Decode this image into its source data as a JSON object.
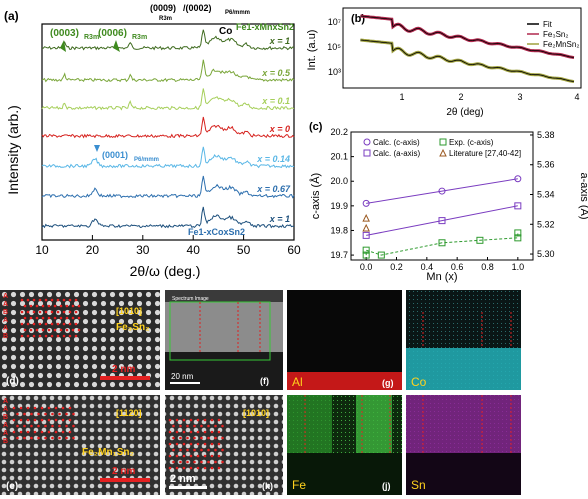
{
  "panel_a": {
    "label": "(a)",
    "xlabel": "2θ/ω (deg.)",
    "ylabel": "Intensity (arb.)",
    "xticks": [
      "10",
      "20",
      "30",
      "40",
      "50",
      "60"
    ],
    "series_labels": [
      "x = 1",
      "x = 0.5",
      "x = 0.1",
      "x = 0",
      "x = 0.14",
      "x = 0.67",
      "x = 1"
    ],
    "annot_0003": "(0003)",
    "annot_0003_sub": "R3m",
    "annot_0006": "(0006)",
    "annot_0006_sub": "R3m",
    "annot_0009": "(0009)",
    "annot_0009_sub": "R3m",
    "annot_0002": "/(0002)",
    "annot_0002_sub": "P6/mmm",
    "annot_co": "Co",
    "annot_top_formula": "Fe1-xMnxSn2",
    "annot_0001": "(0001)",
    "annot_0001_sub": "P6/mmm",
    "annot_bottom_formula": "Fe1-xCoxSn2",
    "colors": [
      "#3f6b1f",
      "#7aa63a",
      "#a6cf5a",
      "#d6231f",
      "#5ab7e6",
      "#2d6fae",
      "#1c4f7c"
    ]
  },
  "panel_b": {
    "label": "(b)",
    "ylabel": "Int. (a.u)",
    "xlabel": "2θ (deg)",
    "xticks": [
      "1",
      "2",
      "3",
      "4"
    ],
    "yticks": [
      "10⁷",
      "10⁵",
      "10³"
    ],
    "legend": [
      "Fit",
      "Fe₃Sn₂",
      "Fe₂MnSn₂"
    ]
  },
  "panel_c": {
    "label": "(c)",
    "ylabel_left": "c-axis (Å)",
    "ylabel_right": "a-axis (Å)",
    "xlabel": "Mn (x)",
    "left_ticks": [
      "20.2",
      "20.1",
      "20.0",
      "19.9",
      "19.8",
      "19.7"
    ],
    "right_ticks": [
      "5.38",
      "5.36",
      "5.34",
      "5.32",
      "5.30"
    ],
    "xticks": [
      "0.0",
      "0.2",
      "0.4",
      "0.6",
      "0.8",
      "1.0"
    ],
    "legend": [
      "Calc. (c-axis)",
      "Calc. (a-axis)",
      "Exp. (c-axis)",
      "Literature [27,40-42]"
    ]
  },
  "chart_data": {
    "type": "scatter",
    "title": "",
    "xlabel": "Mn (x)",
    "ylabel": "c-axis (Å)",
    "xlim": [
      -0.1,
      1.1
    ],
    "ylim": [
      19.68,
      20.2
    ],
    "series": [
      {
        "name": "Calc. (c-axis)",
        "x": [
          0,
          0.5,
          1.0
        ],
        "y": [
          19.91,
          19.96,
          20.01
        ]
      },
      {
        "name": "Calc. (a-axis)",
        "x": [
          0,
          0.5,
          1.0
        ],
        "y": [
          19.78,
          19.84,
          19.9
        ]
      },
      {
        "name": "Exp. (c-axis)",
        "x": [
          0,
          0,
          0.1,
          0.5,
          0.75,
          1.0,
          1.0
        ],
        "y": [
          19.7,
          19.72,
          19.7,
          19.75,
          19.76,
          19.77,
          19.79
        ]
      },
      {
        "name": "Literature [27,40-42]",
        "x": [
          0,
          0
        ],
        "y": [
          19.81,
          19.85
        ]
      }
    ]
  },
  "micro": {
    "d_label": "(d)",
    "d_text": "[1010]",
    "d_formula": "Fe₃Sn₂",
    "d_scale": "2 nm",
    "e_label": "(e)",
    "e_text": "[1120]",
    "e_formula": "Fe₂Mn₁Sn₂",
    "e_scale": "2 nm",
    "f_label": "(f)",
    "f_top": "Spectrum Image",
    "f_scale": "20 nm",
    "k_label": "(k)",
    "k_text": "[1010]",
    "k_scale": "2 nm",
    "g_label": "(g)",
    "g_elem": "Al",
    "h_label": "(h)",
    "h_elem": "Co",
    "j_label": "(j)",
    "j_elem": "Fe",
    "i_label": "(i)",
    "i_elem": "Sn",
    "stack_letters": [
      "A",
      "A",
      "B",
      "A",
      "A",
      "B"
    ]
  }
}
